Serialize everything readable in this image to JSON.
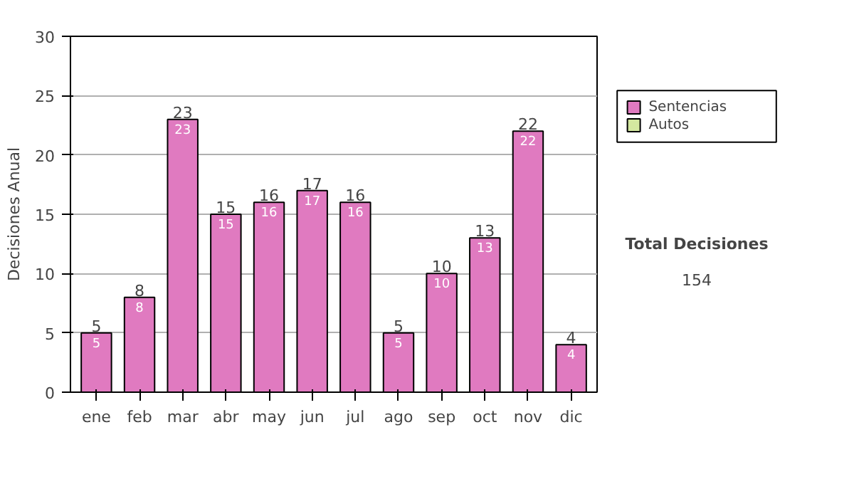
{
  "chart_data": {
    "type": "bar",
    "ylabel": "Decisiones Anual",
    "categories": [
      "ene",
      "feb",
      "mar",
      "abr",
      "may",
      "jun",
      "jul",
      "ago",
      "sep",
      "oct",
      "nov",
      "dic"
    ],
    "stacked": true,
    "series": [
      {
        "name": "Sentencias",
        "color": "#e07ac0",
        "values": [
          5,
          8,
          23,
          15,
          16,
          17,
          16,
          5,
          10,
          13,
          22,
          4
        ],
        "value_labels": [
          "5",
          "8",
          "23",
          "15",
          "16",
          "17",
          "16",
          "5",
          "10",
          "13",
          "22",
          "4"
        ]
      },
      {
        "name": "Autos",
        "color": "#d4e8a0",
        "values": [
          null,
          null,
          null,
          null,
          null,
          null,
          null,
          null,
          null,
          null,
          null,
          null
        ]
      }
    ],
    "totals": [
      "5",
      "8",
      "23",
      "15",
      "16",
      "17",
      "16",
      "5",
      "10",
      "13",
      "22",
      "4"
    ],
    "ylim": [
      0,
      30
    ],
    "yticks": [
      0,
      5,
      10,
      15,
      20,
      25,
      30
    ],
    "grid": "y",
    "legend": "right",
    "annotations": [
      "Total Decisiones",
      "154"
    ]
  }
}
